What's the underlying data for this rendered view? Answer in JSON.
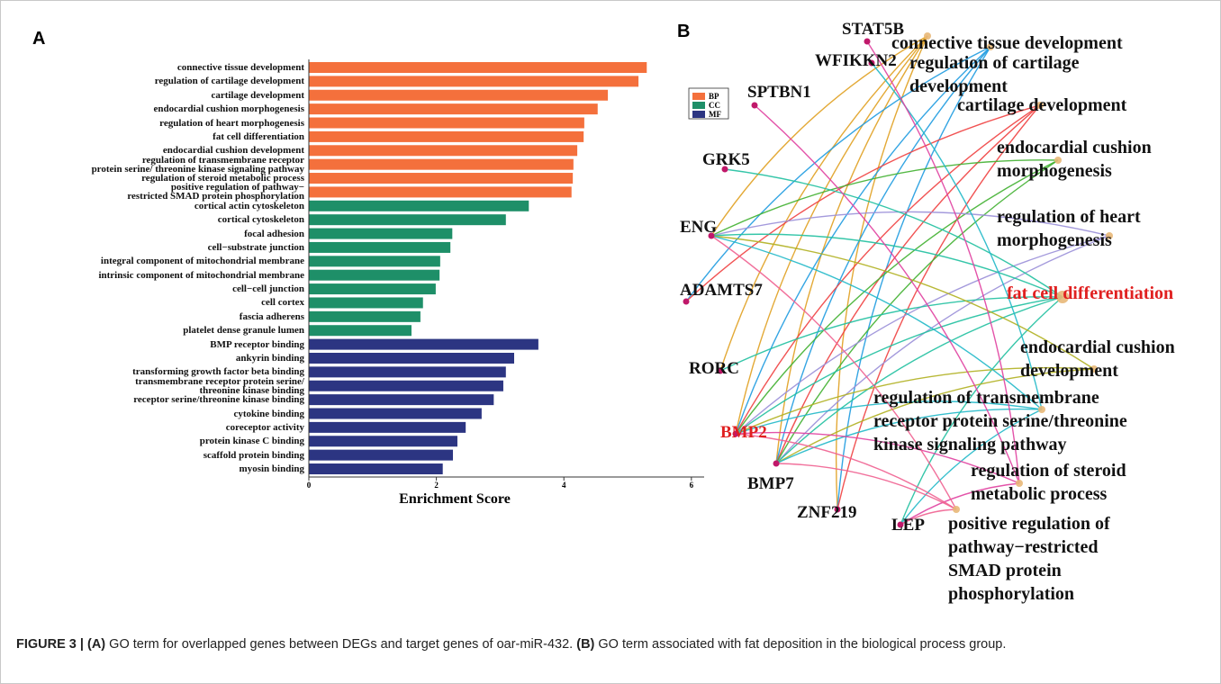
{
  "panel_labels": [
    "A",
    "B"
  ],
  "chart_data": {
    "type": "bar",
    "orientation": "horizontal",
    "categories": [
      "connective tissue development",
      "regulation of cartilage development",
      "cartilage development",
      "endocardial cushion morphogenesis",
      "regulation of heart morphogenesis",
      "fat cell differentiation",
      "endocardial cushion development",
      "regulation of transmembrane receptor\nprotein serine/ threonine kinase signaling pathway",
      "regulation of steroid metabolic process",
      "positive regulation of pathway−\nrestricted SMAD protein phosphorylation",
      "cortical actin cytoskeleton",
      "cortical cytoskeleton",
      "focal adhesion",
      "cell−substrate junction",
      "integral component of mitochondrial membrane",
      "intrinsic component of mitochondrial membrane",
      "cell−cell junction",
      "cell cortex",
      "fascia adherens",
      "platelet dense granule lumen",
      "BMP receptor binding",
      "ankyrin binding",
      "transforming growth factor beta binding",
      "transmembrane receptor protein serine/\nthreonine kinase binding",
      "receptor serine/threonine kinase binding",
      "cytokine binding",
      "coreceptor activity",
      "protein kinase C binding",
      "scaffold protein binding",
      "myosin binding"
    ],
    "series": [
      {
        "name": "BP",
        "color": "#f4703c",
        "values": [
          5.3,
          5.17,
          4.69,
          4.53,
          4.32,
          4.31,
          4.21,
          4.15,
          4.14,
          4.12,
          null,
          null,
          null,
          null,
          null,
          null,
          null,
          null,
          null,
          null,
          null,
          null,
          null,
          null,
          null,
          null,
          null,
          null,
          null,
          null
        ]
      },
      {
        "name": "CC",
        "color": "#1e8f68",
        "values": [
          null,
          null,
          null,
          null,
          null,
          null,
          null,
          null,
          null,
          null,
          3.45,
          3.09,
          2.25,
          2.22,
          2.06,
          2.05,
          1.99,
          1.79,
          1.75,
          1.61,
          null,
          null,
          null,
          null,
          null,
          null,
          null,
          null,
          null,
          null
        ]
      },
      {
        "name": "MF",
        "color": "#2c3582",
        "values": [
          null,
          null,
          null,
          null,
          null,
          null,
          null,
          null,
          null,
          null,
          null,
          null,
          null,
          null,
          null,
          null,
          null,
          null,
          null,
          null,
          3.6,
          3.22,
          3.09,
          3.05,
          2.9,
          2.71,
          2.46,
          2.33,
          2.26,
          2.1
        ]
      }
    ],
    "xlabel": "Enrichment Score",
    "xlim": [
      0,
      6.2
    ],
    "xticks": [
      0,
      2,
      4,
      6
    ],
    "legend": "upper right"
  },
  "network": {
    "genes": [
      {
        "label": "STAT5B",
        "color": "#111111"
      },
      {
        "label": "WFIKKN2",
        "color": "#111111"
      },
      {
        "label": "SPTBN1",
        "color": "#111111"
      },
      {
        "label": "GRK5",
        "color": "#111111"
      },
      {
        "label": "ENG",
        "color": "#111111"
      },
      {
        "label": "ADAMTS7",
        "color": "#111111"
      },
      {
        "label": "RORC",
        "color": "#111111"
      },
      {
        "label": "BMP2",
        "color": "#e02020"
      },
      {
        "label": "BMP7",
        "color": "#111111"
      },
      {
        "label": "ZNF219",
        "color": "#111111"
      },
      {
        "label": "LEP",
        "color": "#111111"
      }
    ],
    "terms": [
      {
        "label": "connective tissue development",
        "color": "#111111"
      },
      {
        "label": "regulation of cartilage\ndevelopment",
        "color": "#111111"
      },
      {
        "label": "cartilage development",
        "color": "#111111"
      },
      {
        "label": "endocardial cushion\nmorphogenesis",
        "color": "#111111"
      },
      {
        "label": "regulation of heart\nmorphogenesis",
        "color": "#111111"
      },
      {
        "label": "fat cell differentiation",
        "color": "#e02020"
      },
      {
        "label": "endocardial cushion\ndevelopment",
        "color": "#111111"
      },
      {
        "label": "regulation of transmembrane\nreceptor protein serine/threonine\nkinase signaling pathway",
        "color": "#111111"
      },
      {
        "label": "regulation of steroid\nmetabolic process",
        "color": "#111111"
      },
      {
        "label": "positive regulation of\npathway−restricted\nSMAD protein\nphosphorylation",
        "color": "#111111"
      }
    ]
  },
  "caption": {
    "figure": "FIGURE 3 |",
    "a_label": "(A)",
    "a_text": "GO term for overlapped genes between DEGs and target genes of oar-miR-432.",
    "b_label": "(B)",
    "b_text": "GO term associated with fat deposition in the biological process group."
  }
}
